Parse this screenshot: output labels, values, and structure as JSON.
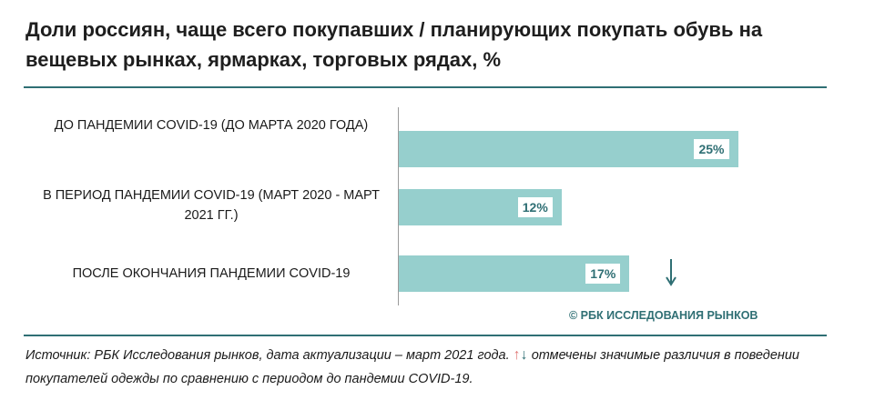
{
  "chart_data": {
    "type": "bar",
    "orientation": "horizontal",
    "title": "Доли россиян, чаще всего покупавших / планирующих покупать обувь на вещевых рынках, ярмарках, торговых рядах, %",
    "categories": [
      "ДО ПАНДЕМИИ COVID-19 (ДО МАРТА 2020 ГОДА)",
      "В ПЕРИОД ПАНДЕМИИ COVID-19 (МАРТ 2020 - МАРТ 2021 ГГ.)",
      "ПОСЛЕ ОКОНЧАНИЯ ПАНДЕМИИ COVID-19"
    ],
    "values": [
      25,
      12,
      17
    ],
    "value_labels": [
      "25%",
      "12%",
      "17%"
    ],
    "significance": [
      "",
      "",
      "down"
    ],
    "xlim": [
      0,
      30
    ],
    "bar_color": "#96cfcd",
    "label_color": "#2f6f74",
    "grid": false
  },
  "copyright": "© РБК ИССЛЕДОВАНИЯ РЫНКОВ",
  "note": {
    "text_before": "Источник: РБК Исследования рынков, дата актуализации – март 2021 года.",
    "up_arrow": "↑",
    "down_arrow": "↓",
    "text_after": "отмечены значимые различия в поведении покупателей одежды по сравнению с периодом до пандемии COVID-19."
  },
  "colors": {
    "accent": "#2f6f74",
    "up": "#e07a78",
    "down": "#2f6f74"
  }
}
